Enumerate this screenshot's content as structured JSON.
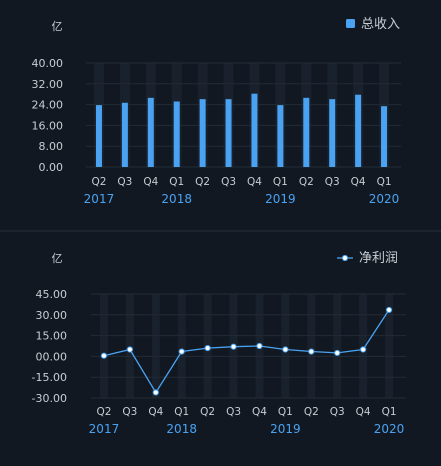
{
  "colors": {
    "background": "#111821",
    "bar": "#4aa3f2",
    "line": "#4aa3f2",
    "point_fill": "#ffffff",
    "text": "#c8cdd4",
    "year_text": "#4aa3f2",
    "band": "#19212c",
    "grid": "#222b37",
    "divider": "#262f3a"
  },
  "chart_data": [
    {
      "type": "bar",
      "unit_label": "亿",
      "legend": "总收入",
      "legend_position": "top-right",
      "categories": [
        "Q2",
        "Q3",
        "Q4",
        "Q1",
        "Q2",
        "Q3",
        "Q4",
        "Q1",
        "Q2",
        "Q3",
        "Q4",
        "Q1"
      ],
      "years": [
        "2017",
        "",
        "",
        "2018",
        "",
        "",
        "",
        "2019",
        "",
        "",
        "",
        "2020"
      ],
      "series": [
        {
          "name": "总收入",
          "values": [
            23.8,
            24.7,
            26.6,
            25.2,
            26.1,
            26.1,
            28.2,
            23.8,
            26.6,
            26.1,
            27.8,
            23.4
          ]
        }
      ],
      "y_ticks": [
        "40.00",
        "32.00",
        "24.00",
        "16.00",
        "8.00",
        "0.00"
      ],
      "ylim": [
        0,
        40
      ],
      "grid": true
    },
    {
      "type": "line",
      "unit_label": "亿",
      "legend": "净利润",
      "legend_position": "top-right",
      "categories": [
        "Q2",
        "Q3",
        "Q4",
        "Q1",
        "Q2",
        "Q3",
        "Q4",
        "Q1",
        "Q2",
        "Q3",
        "Q4",
        "Q1"
      ],
      "years": [
        "2017",
        "",
        "",
        "2018",
        "",
        "",
        "",
        "2019",
        "",
        "",
        "",
        "2020"
      ],
      "series": [
        {
          "name": "净利润",
          "values": [
            0.5,
            5.0,
            -26.0,
            3.5,
            6.0,
            7.0,
            7.5,
            5.0,
            3.5,
            2.5,
            5.0,
            33.5
          ]
        }
      ],
      "y_ticks": [
        "45.00",
        "30.00",
        "15.00",
        "00.00",
        "-15.00",
        "-30.00"
      ],
      "ylim": [
        -30,
        45
      ],
      "grid": true
    }
  ]
}
